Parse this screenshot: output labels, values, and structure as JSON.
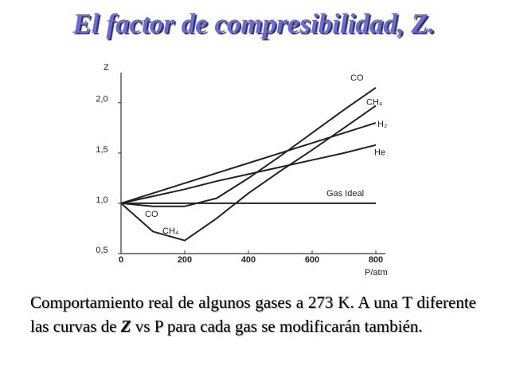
{
  "header": {
    "title": "El factor de compresibilidad, Z."
  },
  "chart_data": {
    "type": "line",
    "x_label": "P/atm",
    "y_label": "Z",
    "x": [
      0,
      100,
      200,
      300,
      400,
      500,
      600,
      700,
      800
    ],
    "series": [
      {
        "name": "CO",
        "color": "#222222",
        "values": [
          1.0,
          0.97,
          0.97,
          1.05,
          1.25,
          1.47,
          1.7,
          1.93,
          2.15
        ]
      },
      {
        "name": "CH₄",
        "color": "#222222",
        "values": [
          1.0,
          0.72,
          0.63,
          0.85,
          1.1,
          1.32,
          1.53,
          1.75,
          1.97
        ]
      },
      {
        "name": "H₂",
        "color": "#222222",
        "values": [
          1.0,
          1.1,
          1.2,
          1.3,
          1.4,
          1.5,
          1.6,
          1.7,
          1.8
        ]
      },
      {
        "name": "He",
        "color": "#222222",
        "values": [
          1.0,
          1.07,
          1.14,
          1.22,
          1.29,
          1.36,
          1.43,
          1.5,
          1.58
        ]
      },
      {
        "name": "Gas Ideal",
        "color": "#222222",
        "values": [
          1.0,
          1.0,
          1.0,
          1.0,
          1.0,
          1.0,
          1.0,
          1.0,
          1.0
        ]
      }
    ],
    "xlim": [
      0,
      830
    ],
    "xticks": [
      0,
      200,
      400,
      600,
      800
    ],
    "ylim": [
      0.5,
      2.3
    ],
    "yticks": [
      {
        "value": 0.5,
        "label": "0,5"
      },
      {
        "value": 1.0,
        "label": "1,0"
      },
      {
        "value": 1.5,
        "label": "1,5"
      },
      {
        "value": 2.0,
        "label": "2,0"
      }
    ]
  },
  "caption": [
    "Comportamiento real de algunos gases a 273 K. A una T diferente las curvas de ",
    "Z",
    " vs P para cada gas se modificarán también."
  ]
}
